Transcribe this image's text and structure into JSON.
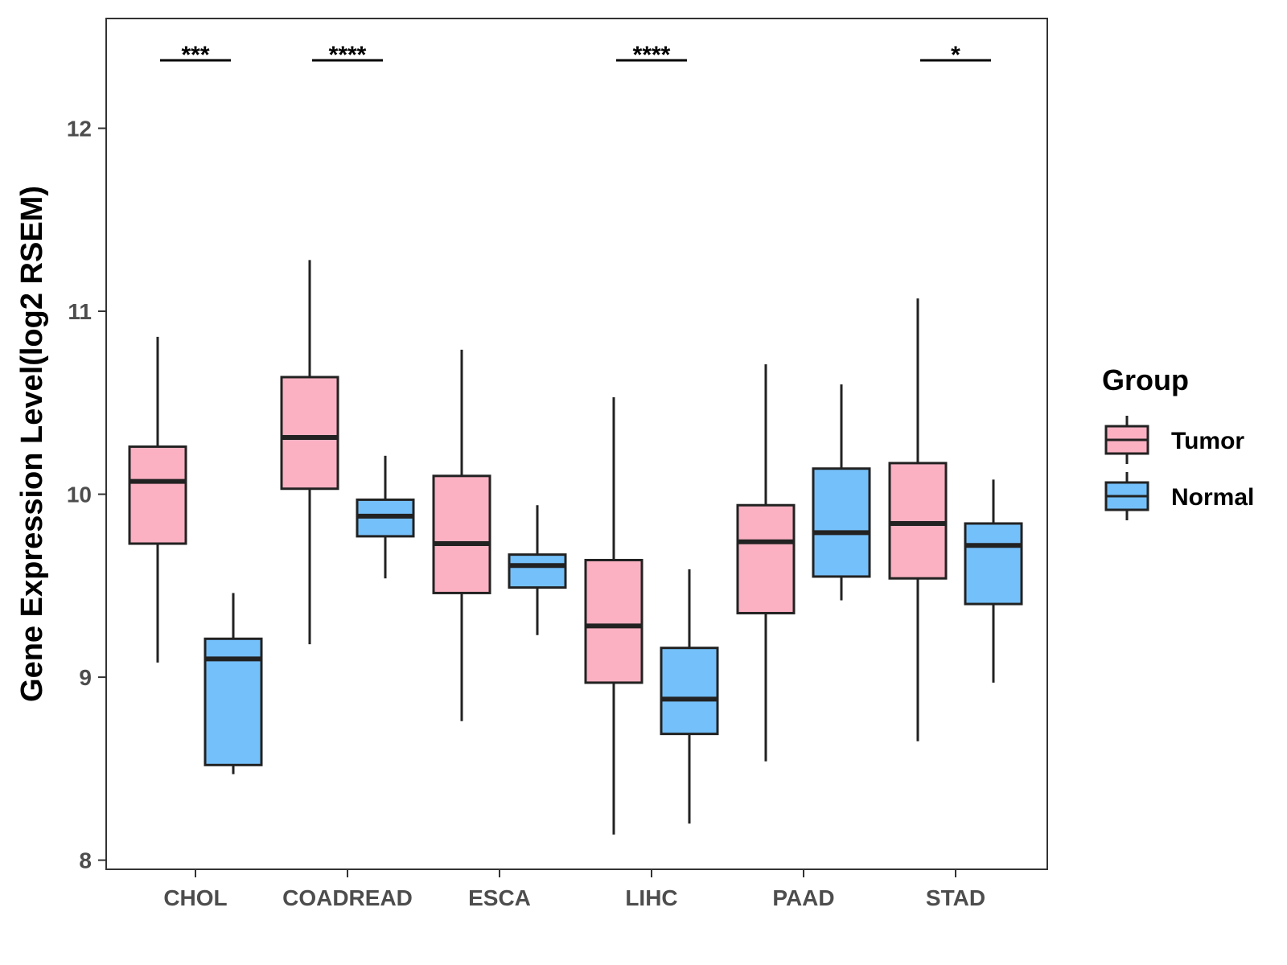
{
  "chart_data": {
    "type": "boxplot",
    "title": "",
    "xlabel": "",
    "ylabel": "Gene Expression Level(log2 RSEM)",
    "ylim": [
      7.95,
      12.6
    ],
    "yticks": [
      8,
      9,
      10,
      11,
      12
    ],
    "ytick_labels": [
      "8",
      "9",
      "10",
      "11",
      "12"
    ],
    "categories": [
      "CHOL",
      "COADREAD",
      "ESCA",
      "LIHC",
      "PAAD",
      "STAD"
    ],
    "legend": {
      "title": "Group",
      "position": "right",
      "entries": [
        {
          "name": "Tumor",
          "color": "#FBB1C2"
        },
        {
          "name": "Normal",
          "color": "#74C0FA"
        }
      ]
    },
    "series": [
      {
        "name": "Tumor",
        "color": "#FBB1C2",
        "boxes": [
          {
            "min": 9.08,
            "q1": 9.73,
            "median": 10.07,
            "q3": 10.26,
            "max": 10.86
          },
          {
            "min": 9.18,
            "q1": 10.03,
            "median": 10.31,
            "q3": 10.64,
            "max": 11.28
          },
          {
            "min": 8.76,
            "q1": 9.46,
            "median": 9.73,
            "q3": 10.1,
            "max": 10.79
          },
          {
            "min": 8.14,
            "q1": 8.97,
            "median": 9.28,
            "q3": 9.64,
            "max": 10.53
          },
          {
            "min": 8.54,
            "q1": 9.35,
            "median": 9.74,
            "q3": 9.94,
            "max": 10.71
          },
          {
            "min": 8.65,
            "q1": 9.54,
            "median": 9.84,
            "q3": 10.17,
            "max": 11.07
          }
        ]
      },
      {
        "name": "Normal",
        "color": "#74C0FA",
        "boxes": [
          {
            "min": 8.47,
            "q1": 8.52,
            "median": 9.1,
            "q3": 9.21,
            "max": 9.46
          },
          {
            "min": 9.54,
            "q1": 9.77,
            "median": 9.88,
            "q3": 9.97,
            "max": 10.21
          },
          {
            "min": 9.23,
            "q1": 9.49,
            "median": 9.61,
            "q3": 9.67,
            "max": 9.94
          },
          {
            "min": 8.2,
            "q1": 8.69,
            "median": 8.88,
            "q3": 9.16,
            "max": 9.59
          },
          {
            "min": 9.42,
            "q1": 9.55,
            "median": 9.79,
            "q3": 10.14,
            "max": 10.6
          },
          {
            "min": 8.97,
            "q1": 9.4,
            "median": 9.72,
            "q3": 9.84,
            "max": 10.08
          }
        ]
      }
    ],
    "significance": [
      {
        "category": "CHOL",
        "label": "***"
      },
      {
        "category": "COADREAD",
        "label": "****"
      },
      {
        "category": "ESCA",
        "label": ""
      },
      {
        "category": "LIHC",
        "label": "****"
      },
      {
        "category": "PAAD",
        "label": ""
      },
      {
        "category": "STAD",
        "label": "*"
      }
    ]
  }
}
